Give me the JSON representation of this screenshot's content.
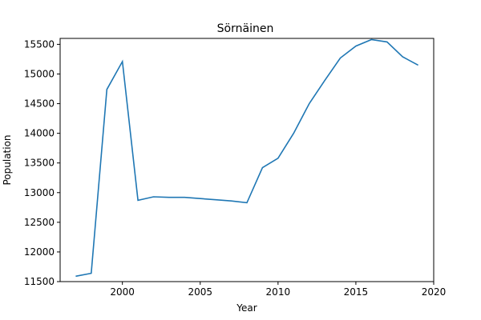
{
  "chart_data": {
    "type": "line",
    "title": "Sörnäinen",
    "xlabel": "Year",
    "ylabel": "Population",
    "xlim": [
      1996,
      2020
    ],
    "ylim": [
      11500,
      15600
    ],
    "xticks": [
      2000,
      2005,
      2010,
      2015,
      2020
    ],
    "yticks": [
      11500,
      12000,
      12500,
      13000,
      13500,
      14000,
      14500,
      15000,
      15500
    ],
    "grid": false,
    "line_color": "#1f77b4",
    "series": [
      {
        "x": [
          1997,
          1998,
          1999,
          2000,
          2001,
          2002,
          2003,
          2004,
          2005,
          2006,
          2007,
          2008,
          2009,
          2010,
          2011,
          2012,
          2013,
          2014,
          2015,
          2016,
          2017,
          2018,
          2019
        ],
        "values": [
          11590,
          11640,
          14740,
          15210,
          12870,
          12930,
          12920,
          12920,
          12900,
          12880,
          12860,
          12830,
          13420,
          13580,
          14000,
          14500,
          14890,
          15270,
          15470,
          15580,
          15540,
          15290,
          15150
        ]
      }
    ]
  }
}
